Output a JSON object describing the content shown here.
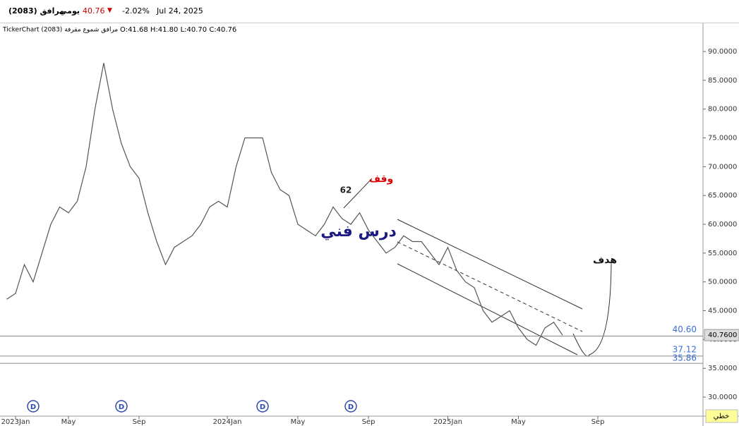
{
  "header": {
    "symbol": "مرافق (2083)",
    "period": "يومي",
    "price": "40.76",
    "change": "-2.02%",
    "date": "Jul 24, 2025"
  },
  "chart_data": {
    "type": "line",
    "legend_text": "TickerChart (2083) مرافق شموع مقرفة",
    "ohlc_text": "O:41.68 H:41.80 L:40.70 C:40.76",
    "categories": [
      null,
      "2023Jan",
      null,
      null,
      null,
      null,
      null,
      "May",
      null,
      null,
      null,
      null,
      null,
      null,
      null,
      "Sep",
      null,
      null,
      null,
      null,
      null,
      null,
      null,
      null,
      null,
      "2024Jan",
      null,
      null,
      null,
      null,
      null,
      null,
      null,
      "May",
      null,
      null,
      null,
      null,
      null,
      null,
      null,
      "Sep",
      null,
      null,
      null,
      null,
      null,
      null,
      null,
      null,
      "2025Jan",
      null,
      null,
      null,
      null,
      null,
      null,
      null,
      "May",
      null,
      null,
      null,
      null,
      null,
      null,
      null,
      null,
      "Sep",
      null,
      null,
      null,
      null,
      null,
      null,
      null,
      null,
      null,
      null,
      null,
      null
    ],
    "series": [
      {
        "name": "مرافق",
        "color": "#555555",
        "values": [
          47,
          48,
          53,
          50,
          55,
          60,
          63,
          62,
          64,
          70,
          80,
          88,
          80,
          74,
          70,
          68,
          62,
          57,
          53,
          56,
          57,
          58,
          60,
          63,
          64,
          63,
          70,
          75,
          75,
          75,
          69,
          66,
          65,
          60,
          59,
          58,
          60,
          63,
          61,
          60,
          62,
          59,
          57,
          55,
          56,
          58,
          57,
          57,
          55,
          53,
          56,
          52,
          50,
          49,
          45,
          43,
          44,
          45,
          42,
          40,
          39,
          42,
          43,
          40.76,
          null,
          null,
          null,
          null,
          null,
          null,
          null,
          null,
          null,
          null,
          null,
          null,
          null,
          null,
          null,
          null
        ]
      }
    ],
    "ylim": [
      26.7,
      94.53
    ],
    "yticks": [
      {
        "value": 30,
        "label": "30.0000"
      },
      {
        "value": 35,
        "label": "35.0000"
      },
      {
        "value": 40,
        "label": "40.0000"
      },
      {
        "value": 45,
        "label": "45.0000"
      },
      {
        "value": 50,
        "label": "50.0000"
      },
      {
        "value": 55,
        "label": "55.0000"
      },
      {
        "value": 60,
        "label": "60.0000"
      },
      {
        "value": 65,
        "label": "65.0000"
      },
      {
        "value": 70,
        "label": "70.0000"
      },
      {
        "value": 75,
        "label": "75.0000"
      },
      {
        "value": 80,
        "label": "80.0000"
      },
      {
        "value": 85,
        "label": "85.0000"
      },
      {
        "value": 90,
        "label": "90.0000"
      }
    ],
    "hlines": [
      {
        "value": 40.6,
        "label": "40.60"
      },
      {
        "value": 37.12,
        "label": "37.12"
      },
      {
        "value": 35.86,
        "label": "35.86"
      }
    ],
    "last_price": {
      "value": 40.76,
      "label": "40.7600"
    },
    "dividends": [
      {
        "index": 3,
        "label": "D"
      },
      {
        "index": 13,
        "label": "D"
      },
      {
        "index": 29,
        "label": "D"
      },
      {
        "index": 39,
        "label": "D"
      }
    ],
    "annotations": [
      "وقف",
      "62",
      "درس فني",
      "هدف"
    ],
    "chart_style_button": "خطي"
  }
}
